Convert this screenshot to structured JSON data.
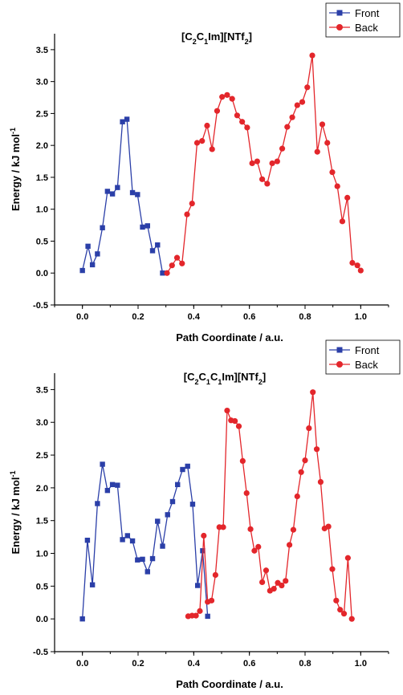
{
  "chart_data": [
    {
      "type": "line",
      "title": {
        "main": "[C",
        "sub1": "2",
        "mid1": "C",
        "sub2": "1",
        "mid2": "Im][NTf",
        "sub3": "2",
        "end": "]"
      },
      "xlabel": "Path Coordinate / a.u.",
      "ylabel": {
        "main": "Energy / kJ mol",
        "sup": "-1"
      },
      "xlim": [
        -0.1,
        1.1
      ],
      "ylim": [
        -0.5,
        3.75
      ],
      "xticks": [
        "0.0",
        "0.2",
        "0.4",
        "0.6",
        "0.8",
        "1.0"
      ],
      "yticks": [
        "-0.5",
        "0.0",
        "0.5",
        "1.0",
        "1.5",
        "2.0",
        "2.5",
        "3.0",
        "3.5"
      ],
      "legend": {
        "placement": "top-right"
      },
      "series": [
        {
          "name": "Front",
          "color": "#2b3fa8",
          "marker": "square",
          "points": [
            [
              0.0,
              0.04
            ],
            [
              0.02,
              0.42
            ],
            [
              0.036,
              0.13
            ],
            [
              0.054,
              0.3
            ],
            [
              0.072,
              0.71
            ],
            [
              0.09,
              1.28
            ],
            [
              0.108,
              1.24
            ],
            [
              0.126,
              1.34
            ],
            [
              0.144,
              2.37
            ],
            [
              0.16,
              2.41
            ],
            [
              0.18,
              1.26
            ],
            [
              0.198,
              1.23
            ],
            [
              0.216,
              0.72
            ],
            [
              0.234,
              0.74
            ],
            [
              0.252,
              0.35
            ],
            [
              0.27,
              0.44
            ],
            [
              0.288,
              0.0
            ]
          ]
        },
        {
          "name": "Back",
          "color": "#e3262b",
          "marker": "circle",
          "points": [
            [
              0.304,
              0.0
            ],
            [
              0.322,
              0.12
            ],
            [
              0.34,
              0.24
            ],
            [
              0.358,
              0.15
            ],
            [
              0.376,
              0.92
            ],
            [
              0.394,
              1.09
            ],
            [
              0.412,
              2.04
            ],
            [
              0.43,
              2.07
            ],
            [
              0.448,
              2.31
            ],
            [
              0.466,
              1.94
            ],
            [
              0.484,
              2.54
            ],
            [
              0.502,
              2.76
            ],
            [
              0.52,
              2.79
            ],
            [
              0.538,
              2.73
            ],
            [
              0.556,
              2.47
            ],
            [
              0.574,
              2.37
            ],
            [
              0.592,
              2.28
            ],
            [
              0.61,
              1.72
            ],
            [
              0.628,
              1.75
            ],
            [
              0.646,
              1.47
            ],
            [
              0.664,
              1.4
            ],
            [
              0.682,
              1.72
            ],
            [
              0.7,
              1.75
            ],
            [
              0.718,
              1.95
            ],
            [
              0.736,
              2.29
            ],
            [
              0.754,
              2.44
            ],
            [
              0.772,
              2.63
            ],
            [
              0.79,
              2.68
            ],
            [
              0.808,
              2.91
            ],
            [
              0.826,
              3.41
            ],
            [
              0.844,
              1.9
            ],
            [
              0.862,
              2.33
            ],
            [
              0.88,
              2.04
            ],
            [
              0.898,
              1.58
            ],
            [
              0.916,
              1.36
            ],
            [
              0.934,
              0.81
            ],
            [
              0.952,
              1.18
            ],
            [
              0.97,
              0.16
            ],
            [
              0.988,
              0.12
            ],
            [
              1.0,
              0.04
            ]
          ]
        }
      ]
    },
    {
      "type": "line",
      "title": {
        "main": "[C",
        "sub1": "2",
        "mid1": "C",
        "sub2": "1",
        "mid2": "C",
        "sub3": "1",
        "mid3": "Im][NTf",
        "sub4": "2",
        "end": "]"
      },
      "xlabel": "Path Coordinate / a.u.",
      "ylabel": {
        "main": "Energy / kJ mol",
        "sup": "-1"
      },
      "xlim": [
        -0.1,
        1.1
      ],
      "ylim": [
        -0.5,
        3.75
      ],
      "xticks": [
        "0.0",
        "0.2",
        "0.4",
        "0.6",
        "0.8",
        "1.0"
      ],
      "yticks": [
        "-0.5",
        "0.0",
        "0.5",
        "1.0",
        "1.5",
        "2.0",
        "2.5",
        "3.0",
        "3.5"
      ],
      "legend": {
        "placement": "top-right"
      },
      "series": [
        {
          "name": "Front",
          "color": "#2b3fa8",
          "marker": "square",
          "points": [
            [
              0.0,
              0.0
            ],
            [
              0.018,
              1.2
            ],
            [
              0.036,
              0.52
            ],
            [
              0.054,
              1.76
            ],
            [
              0.072,
              2.36
            ],
            [
              0.09,
              1.96
            ],
            [
              0.108,
              2.05
            ],
            [
              0.126,
              2.04
            ],
            [
              0.144,
              1.21
            ],
            [
              0.162,
              1.27
            ],
            [
              0.18,
              1.19
            ],
            [
              0.198,
              0.9
            ],
            [
              0.216,
              0.91
            ],
            [
              0.234,
              0.72
            ],
            [
              0.252,
              0.92
            ],
            [
              0.27,
              1.49
            ],
            [
              0.288,
              1.11
            ],
            [
              0.306,
              1.59
            ],
            [
              0.324,
              1.79
            ],
            [
              0.342,
              2.05
            ],
            [
              0.36,
              2.28
            ],
            [
              0.378,
              2.33
            ],
            [
              0.396,
              1.75
            ],
            [
              0.414,
              0.51
            ],
            [
              0.432,
              1.04
            ],
            [
              0.45,
              0.04
            ]
          ]
        },
        {
          "name": "Back",
          "color": "#e3262b",
          "marker": "circle",
          "points": [
            [
              0.38,
              0.04
            ],
            [
              0.394,
              0.05
            ],
            [
              0.408,
              0.05
            ],
            [
              0.422,
              0.12
            ],
            [
              0.436,
              1.27
            ],
            [
              0.45,
              0.26
            ],
            [
              0.464,
              0.28
            ],
            [
              0.478,
              0.67
            ],
            [
              0.492,
              1.4
            ],
            [
              0.506,
              1.4
            ],
            [
              0.52,
              3.18
            ],
            [
              0.534,
              3.03
            ],
            [
              0.548,
              3.02
            ],
            [
              0.562,
              2.94
            ],
            [
              0.576,
              2.41
            ],
            [
              0.59,
              1.92
            ],
            [
              0.604,
              1.37
            ],
            [
              0.618,
              1.04
            ],
            [
              0.632,
              1.1
            ],
            [
              0.646,
              0.56
            ],
            [
              0.66,
              0.74
            ],
            [
              0.674,
              0.43
            ],
            [
              0.688,
              0.46
            ],
            [
              0.702,
              0.55
            ],
            [
              0.716,
              0.51
            ],
            [
              0.73,
              0.58
            ],
            [
              0.744,
              1.13
            ],
            [
              0.758,
              1.36
            ],
            [
              0.772,
              1.87
            ],
            [
              0.786,
              2.24
            ],
            [
              0.8,
              2.42
            ],
            [
              0.814,
              2.91
            ],
            [
              0.828,
              3.46
            ],
            [
              0.842,
              2.59
            ],
            [
              0.856,
              2.09
            ],
            [
              0.87,
              1.38
            ],
            [
              0.884,
              1.41
            ],
            [
              0.898,
              0.76
            ],
            [
              0.912,
              0.28
            ],
            [
              0.926,
              0.14
            ],
            [
              0.94,
              0.08
            ],
            [
              0.954,
              0.93
            ],
            [
              0.968,
              0.0
            ]
          ]
        }
      ]
    }
  ]
}
